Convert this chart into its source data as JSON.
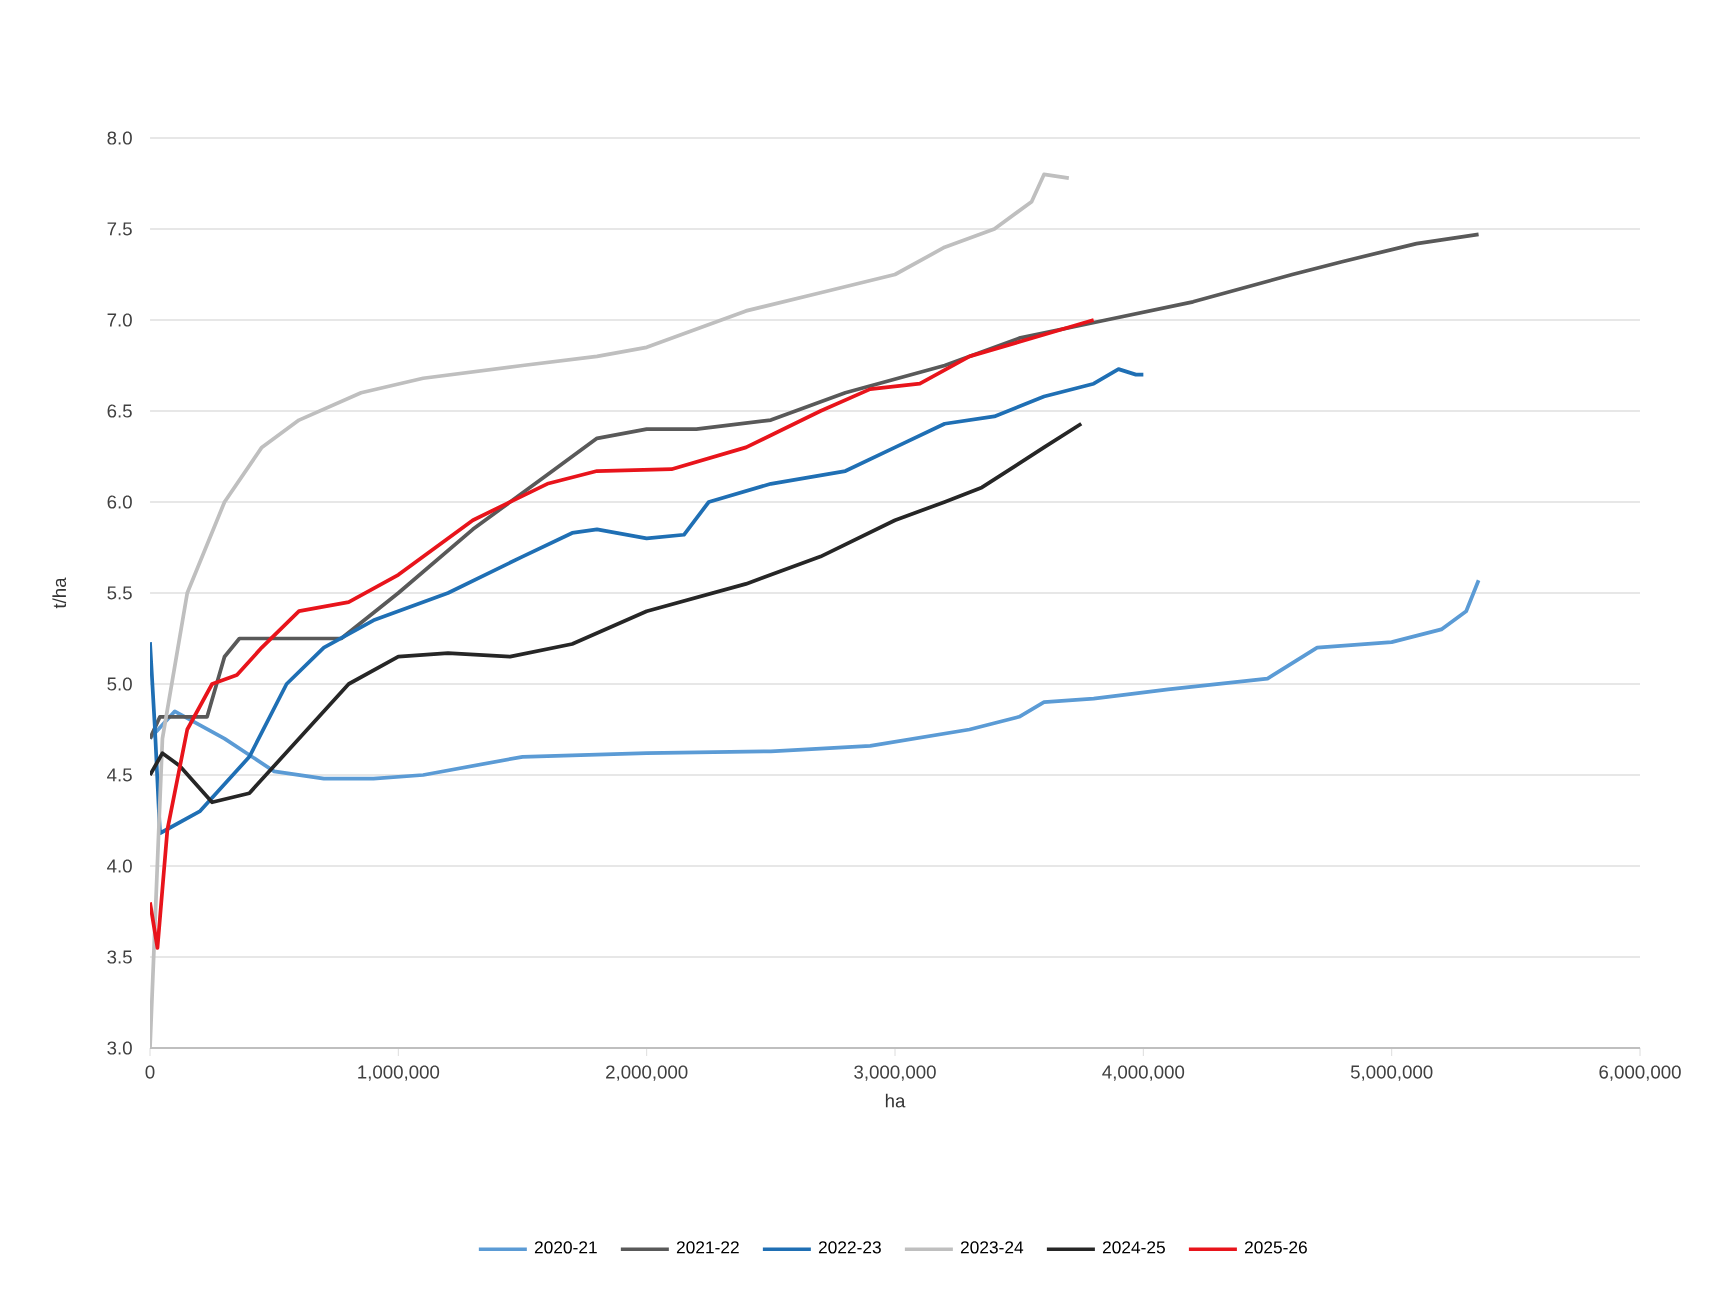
{
  "chart_data": {
    "type": "line",
    "xlabel": "ha",
    "ylabel": "t/ha",
    "xlim": [
      0,
      6000000
    ],
    "ylim": [
      3.0,
      8.0
    ],
    "xticks": [
      {
        "value": 0,
        "label": "0"
      },
      {
        "value": 1000000,
        "label": "1,000,000"
      },
      {
        "value": 2000000,
        "label": "2,000,000"
      },
      {
        "value": 3000000,
        "label": "3,000,000"
      },
      {
        "value": 4000000,
        "label": "4,000,000"
      },
      {
        "value": 5000000,
        "label": "5,000,000"
      },
      {
        "value": 6000000,
        "label": "6,000,000"
      }
    ],
    "yticks": [
      {
        "value": 3.0,
        "label": "3.0"
      },
      {
        "value": 3.5,
        "label": "3.5"
      },
      {
        "value": 4.0,
        "label": "4.0"
      },
      {
        "value": 4.5,
        "label": "4.5"
      },
      {
        "value": 5.0,
        "label": "5.0"
      },
      {
        "value": 5.5,
        "label": "5.5"
      },
      {
        "value": 6.0,
        "label": "6.0"
      },
      {
        "value": 6.5,
        "label": "6.5"
      },
      {
        "value": 7.0,
        "label": "7.0"
      },
      {
        "value": 7.5,
        "label": "7.5"
      },
      {
        "value": 8.0,
        "label": "8.0"
      }
    ],
    "grid": "y",
    "legend": "bottom",
    "line_style": "solid",
    "series": [
      {
        "name": "2020-21",
        "color": "#5b9bd5",
        "x": [
          0,
          100000,
          300000,
          500000,
          700000,
          900000,
          1100000,
          1500000,
          2000000,
          2500000,
          2900000,
          3300000,
          3500000,
          3600000,
          3800000,
          4100000,
          4500000,
          4700000,
          5000000,
          5200000,
          5300000,
          5350000
        ],
        "values": [
          4.7,
          4.85,
          4.7,
          4.52,
          4.48,
          4.48,
          4.5,
          4.6,
          4.62,
          4.63,
          4.66,
          4.75,
          4.82,
          4.9,
          4.92,
          4.97,
          5.03,
          5.2,
          5.23,
          5.3,
          5.4,
          5.57
        ]
      },
      {
        "name": "2021-22",
        "color": "#595959",
        "x": [
          0,
          40000,
          230000,
          300000,
          360000,
          770000,
          1000000,
          1300000,
          1600000,
          1800000,
          2000000,
          2200000,
          2500000,
          2800000,
          3200000,
          3500000,
          3850000,
          4200000,
          4600000,
          4800000,
          5100000,
          5350000
        ],
        "values": [
          4.7,
          4.82,
          4.82,
          5.15,
          5.25,
          5.25,
          5.5,
          5.85,
          6.15,
          6.35,
          6.4,
          6.4,
          6.45,
          6.6,
          6.75,
          6.9,
          7.0,
          7.1,
          7.25,
          7.32,
          7.42,
          7.47
        ]
      },
      {
        "name": "2022-23",
        "color": "#1f6fb4",
        "x": [
          0,
          20000,
          40000,
          200000,
          400000,
          550000,
          700000,
          900000,
          1200000,
          1500000,
          1700000,
          1800000,
          2000000,
          2150000,
          2250000,
          2500000,
          2800000,
          3000000,
          3200000,
          3400000,
          3600000,
          3800000,
          3900000,
          3970000,
          4000000
        ],
        "values": [
          5.23,
          4.75,
          4.18,
          4.3,
          4.6,
          5.0,
          5.2,
          5.35,
          5.5,
          5.7,
          5.83,
          5.85,
          5.8,
          5.82,
          6.0,
          6.1,
          6.17,
          6.3,
          6.43,
          6.47,
          6.58,
          6.65,
          6.73,
          6.7,
          6.7
        ]
      },
      {
        "name": "2023-24",
        "color": "#bfbfbf",
        "x": [
          0,
          50000,
          150000,
          300000,
          450000,
          600000,
          850000,
          1100000,
          1500000,
          1800000,
          2000000,
          2400000,
          2700000,
          3000000,
          3200000,
          3400000,
          3550000,
          3600000,
          3700000
        ],
        "values": [
          3.0,
          4.7,
          5.5,
          6.0,
          6.3,
          6.45,
          6.6,
          6.68,
          6.75,
          6.8,
          6.85,
          7.05,
          7.15,
          7.25,
          7.4,
          7.5,
          7.65,
          7.8,
          7.78
        ]
      },
      {
        "name": "2024-25",
        "color": "#262626",
        "x": [
          0,
          50000,
          120000,
          250000,
          400000,
          600000,
          800000,
          1000000,
          1200000,
          1450000,
          1700000,
          2000000,
          2400000,
          2700000,
          3000000,
          3200000,
          3350000,
          3600000,
          3750000
        ],
        "values": [
          4.5,
          4.62,
          4.55,
          4.35,
          4.4,
          4.7,
          5.0,
          5.15,
          5.17,
          5.15,
          5.22,
          5.4,
          5.55,
          5.7,
          5.9,
          6.0,
          6.08,
          6.3,
          6.43
        ]
      },
      {
        "name": "2025-26",
        "color": "#e8141b",
        "x": [
          0,
          30000,
          70000,
          150000,
          250000,
          350000,
          450000,
          600000,
          800000,
          1000000,
          1300000,
          1600000,
          1800000,
          2100000,
          2400000,
          2700000,
          2900000,
          3100000,
          3300000,
          3550000,
          3800000
        ],
        "values": [
          3.8,
          3.55,
          4.2,
          4.75,
          5.0,
          5.05,
          5.2,
          5.4,
          5.45,
          5.6,
          5.9,
          6.1,
          6.17,
          6.18,
          6.3,
          6.5,
          6.62,
          6.65,
          6.8,
          6.9,
          7.0
        ]
      }
    ]
  }
}
